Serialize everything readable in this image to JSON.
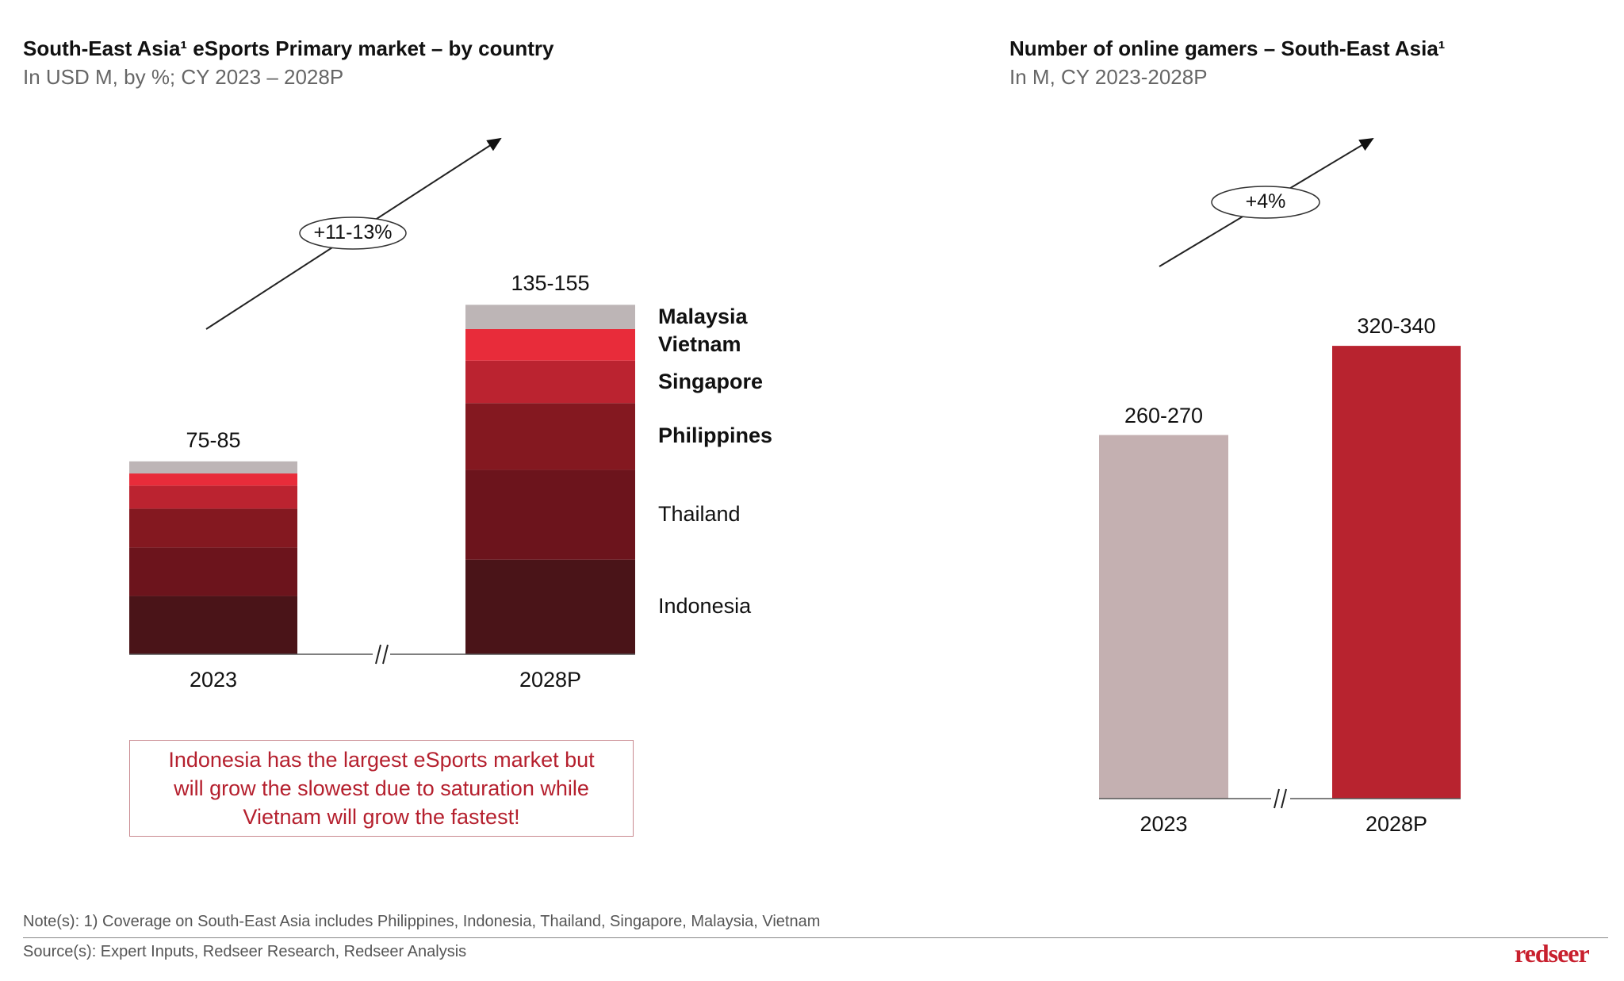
{
  "colors": {
    "Malaysia": "#bdb5b6",
    "Vietnam": "#e82c3a",
    "Singapore": "#bb2330",
    "Philippines": "#841820",
    "Thailand": "#6c141c",
    "Indonesia": "#4a1418",
    "gamers_2023": "#c4b0b1",
    "gamers_2028P": "#b8232f"
  },
  "chart_data": [
    {
      "type": "bar",
      "stacked": true,
      "title": "South-East Asia¹ eSports Primary market – by country",
      "subtitle": "In USD M, by %; CY 2023 – 2028P",
      "categories": [
        "2023",
        "2028P"
      ],
      "total_labels": [
        "75-85",
        "135-155"
      ],
      "series": [
        {
          "name": "Indonesia",
          "values": [
            24,
            39
          ],
          "bold": false
        },
        {
          "name": "Thailand",
          "values": [
            20,
            37
          ],
          "bold": false
        },
        {
          "name": "Philippines",
          "values": [
            16,
            27.5
          ],
          "bold": true
        },
        {
          "name": "Singapore",
          "values": [
            9.5,
            17.5
          ],
          "bold": true
        },
        {
          "name": "Vietnam",
          "values": [
            5,
            13
          ],
          "bold": true
        },
        {
          "name": "Malaysia",
          "values": [
            5,
            10
          ],
          "bold": true
        }
      ],
      "growth_label": "+11-13%",
      "axis_break": "//",
      "callout": [
        "Indonesia has the largest eSports market but",
        "will grow the slowest due to saturation while",
        "Vietnam will grow the fastest!"
      ]
    },
    {
      "type": "bar",
      "title": "Number of online gamers – South-East Asia¹",
      "subtitle": "In M, CY 2023-2028P",
      "categories": [
        "2023",
        "2028P"
      ],
      "values": [
        265,
        330
      ],
      "value_labels": [
        "260-270",
        "320-340"
      ],
      "growth_label": "+4%",
      "axis_break": "//"
    }
  ],
  "footer": {
    "note": "Note(s): 1) Coverage on South-East Asia includes Philippines, Indonesia, Thailand, Singapore, Malaysia, Vietnam",
    "source": "Source(s): Expert Inputs, Redseer Research, Redseer Analysis",
    "logo": "redseer"
  }
}
